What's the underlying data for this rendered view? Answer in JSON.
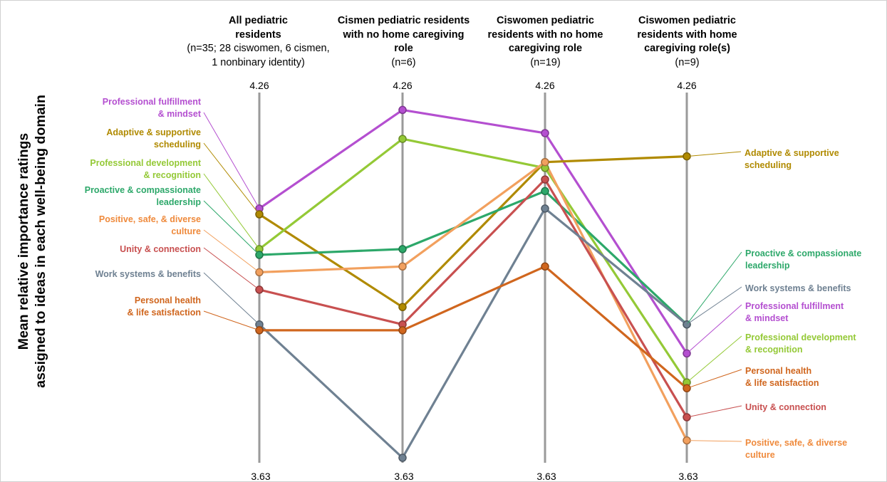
{
  "chart_data": {
    "type": "line",
    "ylabel_lines": [
      "Mean relative importance ratings",
      "assigned to ideas in each well-being domain"
    ],
    "axes": [
      {
        "title": "All pediatric residents",
        "subtitle": "(n=35; 28 ciswomen, 6 cismen, 1 nonbinary identity)",
        "max_label": "4.26",
        "min_label": "3.63"
      },
      {
        "title": "Cismen pediatric residents with no home caregiving role",
        "subtitle": "(n=6)",
        "max_label": "4.26",
        "min_label": "3.63"
      },
      {
        "title": "Ciswomen pediatric residents with no home caregiving role",
        "subtitle": "(n=19)",
        "max_label": "4.26",
        "min_label": "3.63"
      },
      {
        "title": "Ciswomen pediatric residents with home caregiving role(s)",
        "subtitle": "(n=9)",
        "max_label": "4.26",
        "min_label": "3.63"
      }
    ],
    "ylim": [
      3.63,
      4.26
    ],
    "series": [
      {
        "name": "Professional fulfillment & mindset",
        "color": "#b44fd0",
        "values": [
          4.06,
          4.23,
          4.19,
          3.81
        ]
      },
      {
        "name": "Adaptive & supportive scheduling",
        "color": "#b08a00",
        "values": [
          4.05,
          3.89,
          4.14,
          4.15
        ]
      },
      {
        "name": "Professional development & recognition",
        "color": "#94c936",
        "values": [
          3.99,
          4.18,
          4.13,
          3.76
        ]
      },
      {
        "name": "Proactive & compassionate leadership",
        "color": "#2da86a",
        "values": [
          3.98,
          3.99,
          4.09,
          3.86
        ]
      },
      {
        "name": "Positive, safe, & diverse culture",
        "color": "#f2a05e",
        "values": [
          3.95,
          3.96,
          4.14,
          3.66
        ]
      },
      {
        "name": "Unity & connection",
        "color": "#c85050",
        "values": [
          3.92,
          3.86,
          4.11,
          3.7
        ]
      },
      {
        "name": "Work systems & benefits",
        "color": "#6f8192",
        "values": [
          3.86,
          3.63,
          4.06,
          3.86
        ]
      },
      {
        "name": "Personal health & life satisfaction",
        "color": "#d0661e",
        "values": [
          3.85,
          3.85,
          3.96,
          3.75
        ]
      }
    ],
    "left_labels": [
      {
        "series": 0,
        "lines": [
          "Professional fulfillment",
          "& mindset"
        ],
        "color": "#b44fd0"
      },
      {
        "series": 1,
        "lines": [
          "Adaptive & supportive",
          "scheduling"
        ],
        "color": "#b08a00"
      },
      {
        "series": 2,
        "lines": [
          "Professional development",
          "& recognition"
        ],
        "color": "#94c936"
      },
      {
        "series": 3,
        "lines": [
          "Proactive & compassionate",
          "leadership"
        ],
        "color": "#2da86a"
      },
      {
        "series": 4,
        "lines": [
          "Positive, safe, & diverse",
          "culture"
        ],
        "color": "#ef8a3c"
      },
      {
        "series": 5,
        "lines": [
          "Unity & connection"
        ],
        "color": "#c85050"
      },
      {
        "series": 6,
        "lines": [
          "Work systems & benefits"
        ],
        "color": "#6f8192"
      },
      {
        "series": 7,
        "lines": [
          "Personal health",
          "& life satisfaction"
        ],
        "color": "#d0661e"
      }
    ],
    "right_labels": [
      {
        "series": 1,
        "lines": [
          "Adaptive & supportive",
          "scheduling"
        ],
        "color": "#b08a00"
      },
      {
        "series": 3,
        "lines": [
          "Proactive & compassionate",
          "leadership"
        ],
        "color": "#2da86a"
      },
      {
        "series": 6,
        "lines": [
          "Work systems & benefits"
        ],
        "color": "#6f8192"
      },
      {
        "series": 0,
        "lines": [
          "Professional fulfillment",
          "& mindset"
        ],
        "color": "#b44fd0"
      },
      {
        "series": 2,
        "lines": [
          "Professional development",
          "& recognition"
        ],
        "color": "#94c936"
      },
      {
        "series": 7,
        "lines": [
          "Personal health",
          "& life satisfaction"
        ],
        "color": "#d0661e"
      },
      {
        "series": 5,
        "lines": [
          "Unity & connection"
        ],
        "color": "#c85050"
      },
      {
        "series": 4,
        "lines": [
          "Positive, safe, & diverse",
          "culture"
        ],
        "color": "#ef8a3c"
      }
    ]
  }
}
